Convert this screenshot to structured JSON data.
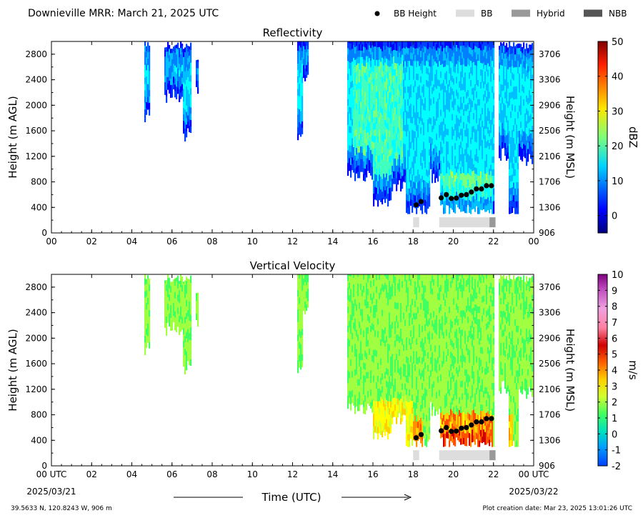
{
  "header": {
    "title": "Downieville MRR:  March 21, 2025 UTC",
    "legend": [
      {
        "label": "BB Height",
        "kind": "dot",
        "color": "#000000"
      },
      {
        "label": "BB",
        "kind": "bar",
        "color": "#dddddd"
      },
      {
        "label": "Hybrid",
        "kind": "bar",
        "color": "#999999"
      },
      {
        "label": "NBB",
        "kind": "bar",
        "color": "#555555"
      }
    ]
  },
  "chart_data": [
    {
      "type": "heatmap",
      "title": "Reflectivity",
      "ylabel": "Height (m AGL)",
      "y2label": "Height (m MSL)",
      "xlim": [
        0,
        24
      ],
      "ylim": [
        0,
        3000
      ],
      "x_ticks": [
        "00",
        "02",
        "04",
        "06",
        "08",
        "10",
        "12",
        "14",
        "16",
        "18",
        "20",
        "22",
        "00"
      ],
      "y_ticks": [
        0,
        400,
        800,
        1200,
        1600,
        2000,
        2400,
        2800
      ],
      "y2_ticks": [
        906,
        1306,
        1706,
        2106,
        2506,
        2906,
        3306,
        3706
      ],
      "colorbar": {
        "label": "dBZ",
        "range": [
          -5,
          50
        ],
        "ticks": [
          0,
          10,
          20,
          30,
          40,
          50
        ]
      },
      "bb_height": [
        [
          18.15,
          440
        ],
        [
          18.4,
          490
        ],
        [
          19.4,
          550
        ],
        [
          19.65,
          600
        ],
        [
          19.9,
          540
        ],
        [
          20.15,
          545
        ],
        [
          20.4,
          590
        ],
        [
          20.65,
          600
        ],
        [
          20.9,
          640
        ],
        [
          21.15,
          690
        ],
        [
          21.4,
          690
        ],
        [
          21.65,
          740
        ],
        [
          21.9,
          740
        ]
      ],
      "bb_flags": [
        {
          "type": "BB",
          "start": 18.0,
          "end": 18.3
        },
        {
          "type": "BB",
          "start": 19.3,
          "end": 21.8
        },
        {
          "type": "Hybrid",
          "start": 21.8,
          "end": 22.1
        }
      ]
    },
    {
      "type": "heatmap",
      "title": "Vertical Velocity",
      "xlabel": "Time (UTC)",
      "ylabel": "Height (m AGL)",
      "y2label": "Height (m MSL)",
      "xlim": [
        0,
        24
      ],
      "ylim": [
        0,
        3000
      ],
      "x_ticks": [
        "00 UTC",
        "02",
        "04",
        "06",
        "08",
        "10",
        "12",
        "14",
        "16",
        "18",
        "20",
        "22",
        "00 UTC"
      ],
      "x_date_labels": [
        "2025/03/21",
        "2025/03/22"
      ],
      "y_ticks": [
        0,
        400,
        800,
        1200,
        1600,
        2000,
        2400,
        2800
      ],
      "y2_ticks": [
        906,
        1306,
        1706,
        2106,
        2506,
        2906,
        3306,
        3706
      ],
      "colorbar": {
        "label": "m/s",
        "range": [
          -2,
          10
        ],
        "ticks": [
          -2,
          -1,
          0,
          1,
          2,
          3,
          4,
          5,
          6,
          7,
          8,
          9,
          10
        ]
      },
      "bb_height": [
        [
          18.15,
          440
        ],
        [
          18.4,
          490
        ],
        [
          19.4,
          550
        ],
        [
          19.65,
          600
        ],
        [
          19.9,
          540
        ],
        [
          20.15,
          545
        ],
        [
          20.4,
          590
        ],
        [
          20.65,
          600
        ],
        [
          20.9,
          640
        ],
        [
          21.15,
          690
        ],
        [
          21.4,
          690
        ],
        [
          21.65,
          740
        ],
        [
          21.9,
          740
        ]
      ],
      "bb_flags": [
        {
          "type": "BB",
          "start": 18.0,
          "end": 18.3
        },
        {
          "type": "BB",
          "start": 19.3,
          "end": 21.8
        },
        {
          "type": "Hybrid",
          "start": 21.8,
          "end": 22.1
        }
      ]
    }
  ],
  "footer": {
    "location": "39.5633 N, 120.8243 W, 906 m",
    "created": "Plot creation date: Mar 23, 2025 13:01:26 UTC"
  }
}
